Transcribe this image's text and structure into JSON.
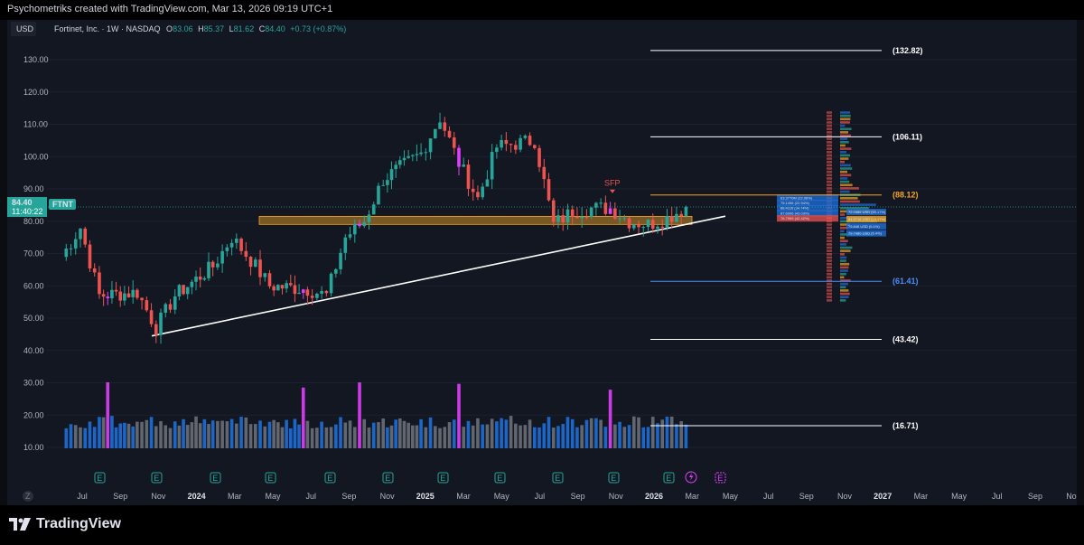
{
  "header": {
    "credit": "Psychometriks created with TradingView.com, Mar 13, 2026 09:19 UTC+1"
  },
  "legend": {
    "currency": "USD",
    "symbol": "Fortinet, Inc. · 1W · NASDAQ",
    "o_label": "O",
    "o_value": "83.06",
    "h_label": "H",
    "h_value": "85.37",
    "l_label": "L",
    "l_value": "81.62",
    "c_label": "C",
    "c_value": "84.40",
    "change": "+0.73 (+0.87%)"
  },
  "price_tag": {
    "ticker": "FTNT",
    "price": "84.40",
    "countdown": "11:40:22"
  },
  "annotation": {
    "sfp": "SFP"
  },
  "brand": {
    "name": "TradingView"
  },
  "colors": {
    "background": "#131722",
    "up": "#26a69a",
    "down": "#ef5350",
    "pink": "#e040fb",
    "level_white": "#ffffff",
    "level_orange": "#f5a623",
    "level_blue": "#4f8ef7",
    "zone": "#f5a623",
    "volume_blue": "#1e6fd9",
    "volume_gray": "#6b6f78"
  },
  "icons": {
    "earnings": "earnings-e-icon",
    "dividend": "lightning-icon",
    "logo": "tradingview-logo-icon",
    "z": "z-icon"
  },
  "chart_data": {
    "type": "candlestick",
    "interval": "1W",
    "ylim": [
      10,
      140
    ],
    "y_ticks": [
      "130.00",
      "120.00",
      "110.00",
      "100.00",
      "90.00",
      "80.00",
      "70.00",
      "60.00",
      "50.00",
      "40.00",
      "30.00",
      "20.00",
      "10.00"
    ],
    "x_ticks": [
      "Jul",
      "Sep",
      "Nov",
      "2024",
      "Mar",
      "May",
      "Jul",
      "Sep",
      "Nov",
      "2025",
      "Mar",
      "May",
      "Jul",
      "Sep",
      "Nov",
      "2026",
      "Mar",
      "May",
      "Jul",
      "Sep",
      "Nov",
      "2027",
      "Mar",
      "May",
      "Jul",
      "Sep",
      "Nov"
    ],
    "price_levels": [
      {
        "label": "(132.82)",
        "value": 132.82,
        "color": "#ffffff"
      },
      {
        "label": "(106.11)",
        "value": 106.11,
        "color": "#ffffff"
      },
      {
        "label": "(88.12)",
        "value": 88.12,
        "color": "#f5a623"
      },
      {
        "label": "(61.41)",
        "value": 61.41,
        "color": "#4f8ef7"
      },
      {
        "label": "(43.42)",
        "value": 43.42,
        "color": "#ffffff"
      },
      {
        "label": "(16.71)",
        "value": 16.71,
        "color": "#ffffff"
      }
    ],
    "support_zone": [
      79,
      81.5
    ],
    "trendline": [
      {
        "date": "2023-11",
        "price": 44.5
      },
      {
        "date": "2026-03",
        "price": 81
      }
    ],
    "current_price": 84.4,
    "anchors": [
      {
        "date": "2023-06",
        "price": 69
      },
      {
        "date": "2023-07",
        "price": 78
      },
      {
        "date": "2023-08",
        "price": 57
      },
      {
        "date": "2023-10",
        "price": 58
      },
      {
        "date": "2023-11",
        "price": 47
      },
      {
        "date": "2023-12",
        "price": 57
      },
      {
        "date": "2024-02",
        "price": 66
      },
      {
        "date": "2024-03",
        "price": 75
      },
      {
        "date": "2024-04",
        "price": 68
      },
      {
        "date": "2024-05",
        "price": 60
      },
      {
        "date": "2024-07",
        "price": 59
      },
      {
        "date": "2024-08",
        "price": 57
      },
      {
        "date": "2024-09",
        "price": 75
      },
      {
        "date": "2024-10",
        "price": 80
      },
      {
        "date": "2024-11",
        "price": 93
      },
      {
        "date": "2025-01",
        "price": 101
      },
      {
        "date": "2025-02",
        "price": 112
      },
      {
        "date": "2025-03",
        "price": 98
      },
      {
        "date": "2025-04",
        "price": 87
      },
      {
        "date": "2025-05",
        "price": 103
      },
      {
        "date": "2025-06",
        "price": 104
      },
      {
        "date": "2025-07",
        "price": 105
      },
      {
        "date": "2025-08",
        "price": 79
      },
      {
        "date": "2025-09",
        "price": 83
      },
      {
        "date": "2025-10",
        "price": 84
      },
      {
        "date": "2025-11",
        "price": 84
      },
      {
        "date": "2025-12",
        "price": 80
      },
      {
        "date": "2026-01",
        "price": 79
      },
      {
        "date": "2026-02",
        "price": 81
      },
      {
        "date": "2026-03",
        "price": 84.4
      }
    ],
    "volume_profile": [
      {
        "label": "63.3770M (22.06%)"
      },
      {
        "label": "75.1496 (22.94%)"
      },
      {
        "label": "88.4116 (34.74%)"
      },
      {
        "label": "67.6006 (43.03%)"
      },
      {
        "label": "76.7959 (42.42%)"
      },
      {
        "label": "72.1686 USD (10.17%)"
      },
      {
        "label": "84.5716 USD (13.17%)"
      },
      {
        "label": "79.846 USD (9.1%)"
      },
      {
        "label": "79.7480 USD (6.4%)"
      }
    ]
  }
}
